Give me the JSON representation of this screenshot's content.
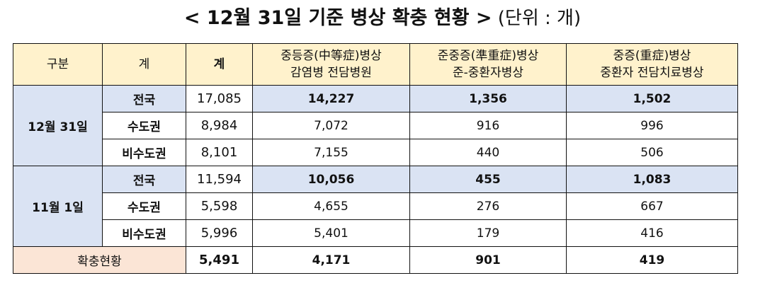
{
  "title": {
    "main": "< 12월 31일 기준 병상 확충 현황 >",
    "unit": " (단위 : 개)"
  },
  "headers": {
    "col1": "구분",
    "col2": "계",
    "col3": "계",
    "col4_line1": "중등증(中等症)병상",
    "col4_line2": "감염병 전담병원",
    "col5_line1": "준중증(準重症)병상",
    "col5_line2": "준-중환자병상",
    "col6_line1": "중증(重症)병상",
    "col6_line2": "중환자 전담치료병상"
  },
  "groups": [
    {
      "label": "12월 31일",
      "rows": [
        {
          "region": "전국",
          "total": "17,085",
          "moderate": "14,227",
          "semi_severe": "1,356",
          "severe": "1,502"
        },
        {
          "region": "수도권",
          "total": "8,984",
          "moderate": "7,072",
          "semi_severe": "916",
          "severe": "996"
        },
        {
          "region": "비수도권",
          "total": "8,101",
          "moderate": "7,155",
          "semi_severe": "440",
          "severe": "506"
        }
      ]
    },
    {
      "label": "11월 1일",
      "rows": [
        {
          "region": "전국",
          "total": "11,594",
          "moderate": "10,056",
          "semi_severe": "455",
          "severe": "1,083"
        },
        {
          "region": "수도권",
          "total": "5,598",
          "moderate": "4,655",
          "semi_severe": "276",
          "severe": "667"
        },
        {
          "region": "비수도권",
          "total": "5,996",
          "moderate": "5,401",
          "semi_severe": "179",
          "severe": "416"
        }
      ]
    }
  ],
  "expansion": {
    "label": "확충현황",
    "total": "5,491",
    "moderate": "4,171",
    "semi_severe": "901",
    "severe": "419"
  }
}
